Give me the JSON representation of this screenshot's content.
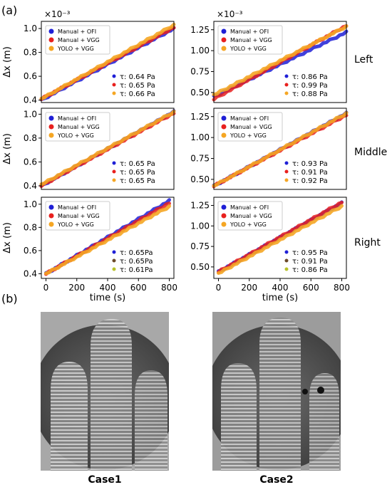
{
  "panel_a_label": "(a)",
  "panel_b_label": "(b)",
  "row_labels": [
    "Left",
    "Middle",
    "Right"
  ],
  "column_exponents": [
    "×10⁻³",
    "×10⁻³"
  ],
  "legend_entries": [
    {
      "name": "Manual + OFI",
      "color": "#1f1fd6"
    },
    {
      "name": "Manual + VGG",
      "color": "#e8201e"
    },
    {
      "name": "YOLO + VGG",
      "color": "#f5a623"
    }
  ],
  "tau_dot_colors_right_row": [
    "#1f1fd6",
    "#6b4a2a",
    "#b8c22a"
  ],
  "chart_data": [
    {
      "type": "line",
      "row": "Left",
      "col": 1,
      "xlabel": "",
      "ylabel": "Δx (m)",
      "xlim": [
        0,
        800
      ],
      "ylim": [
        0.38,
        1.06
      ],
      "yticks": [
        "0.4",
        "0.6",
        "0.8",
        "1.0"
      ],
      "xticks": [],
      "x": [
        0,
        800
      ],
      "series": [
        {
          "name": "Manual + OFI",
          "values": [
            0.4,
            1.0
          ],
          "tau": "τ: 0.64 Pa"
        },
        {
          "name": "Manual + VGG",
          "values": [
            0.41,
            1.01
          ],
          "tau": "τ: 0.65 Pa"
        },
        {
          "name": "YOLO + VGG",
          "values": [
            0.41,
            1.03
          ],
          "tau": "τ: 0.66 Pa"
        }
      ]
    },
    {
      "type": "line",
      "row": "Left",
      "col": 2,
      "xlabel": "",
      "ylabel": "",
      "xlim": [
        0,
        800
      ],
      "ylim": [
        0.38,
        1.35
      ],
      "yticks": [
        "0.50",
        "0.75",
        "1.00",
        "1.25"
      ],
      "xticks": [],
      "x": [
        0,
        800
      ],
      "series": [
        {
          "name": "Manual + OFI",
          "values": [
            0.45,
            1.22
          ],
          "tau": "τ: 0.86 Pa"
        },
        {
          "name": "Manual + VGG",
          "values": [
            0.42,
            1.3
          ],
          "tau": "τ: 0.99 Pa"
        },
        {
          "name": "YOLO + VGG",
          "values": [
            0.47,
            1.29
          ],
          "tau": "τ: 0.88 Pa"
        }
      ]
    },
    {
      "type": "line",
      "row": "Middle",
      "col": 1,
      "xlabel": "",
      "ylabel": "Δx (m)",
      "xlim": [
        0,
        800
      ],
      "ylim": [
        0.37,
        1.05
      ],
      "yticks": [
        "0.4",
        "0.6",
        "0.8",
        "1.0"
      ],
      "xticks": [],
      "x": [
        0,
        800
      ],
      "series": [
        {
          "name": "Manual + OFI",
          "values": [
            0.4,
            1.02
          ],
          "tau": "τ: 0.65 Pa"
        },
        {
          "name": "Manual + VGG",
          "values": [
            0.4,
            1.01
          ],
          "tau": "τ: 0.65 Pa"
        },
        {
          "name": "YOLO + VGG",
          "values": [
            0.41,
            1.02
          ],
          "tau": "τ: 0.65 Pa"
        }
      ]
    },
    {
      "type": "line",
      "row": "Middle",
      "col": 2,
      "xlabel": "",
      "ylabel": "",
      "xlim": [
        0,
        800
      ],
      "ylim": [
        0.38,
        1.35
      ],
      "yticks": [
        "0.50",
        "0.75",
        "1.00",
        "1.25"
      ],
      "xticks": [],
      "x": [
        0,
        800
      ],
      "series": [
        {
          "name": "Manual + OFI",
          "values": [
            0.42,
            1.29
          ],
          "tau": "τ: 0.93 Pa"
        },
        {
          "name": "Manual + VGG",
          "values": [
            0.42,
            1.27
          ],
          "tau": "τ: 0.91 Pa"
        },
        {
          "name": "YOLO + VGG",
          "values": [
            0.42,
            1.29
          ],
          "tau": "τ: 0.92 Pa"
        }
      ]
    },
    {
      "type": "line",
      "row": "Right",
      "col": 1,
      "xlabel": "time (s)",
      "ylabel": "Δx (m)",
      "xlim": [
        -30,
        830
      ],
      "ylim": [
        0.36,
        1.06
      ],
      "yticks": [
        "0.4",
        "0.6",
        "0.8",
        "1.0"
      ],
      "xticks": [
        "0",
        "200",
        "400",
        "600",
        "800"
      ],
      "x": [
        0,
        800
      ],
      "series": [
        {
          "name": "Manual + OFI",
          "values": [
            0.4,
            1.03
          ],
          "tau": "τ: 0.65Pa"
        },
        {
          "name": "Manual + VGG",
          "values": [
            0.4,
            1.01
          ],
          "tau": "τ: 0.65Pa"
        },
        {
          "name": "YOLO + VGG",
          "values": [
            0.4,
            0.98
          ],
          "tau": "τ: 0.61Pa"
        }
      ]
    },
    {
      "type": "line",
      "row": "Right",
      "col": 2,
      "xlabel": "time (s)",
      "ylabel": "",
      "xlim": [
        -30,
        830
      ],
      "ylim": [
        0.36,
        1.35
      ],
      "yticks": [
        "0.50",
        "0.75",
        "1.00",
        "1.25"
      ],
      "xticks": [
        "0",
        "200",
        "400",
        "600",
        "800"
      ],
      "x": [
        0,
        800
      ],
      "series": [
        {
          "name": "Manual + OFI",
          "values": [
            0.44,
            1.28
          ],
          "tau": "τ: 0.95 Pa"
        },
        {
          "name": "Manual + VGG",
          "values": [
            0.44,
            1.29
          ],
          "tau": "τ: 0.91 Pa"
        },
        {
          "name": "YOLO + VGG",
          "values": [
            0.42,
            1.24
          ],
          "tau": "τ: 0.86 Pa"
        }
      ]
    }
  ],
  "cases": [
    {
      "caption": "Case1"
    },
    {
      "caption": "Case2"
    }
  ]
}
